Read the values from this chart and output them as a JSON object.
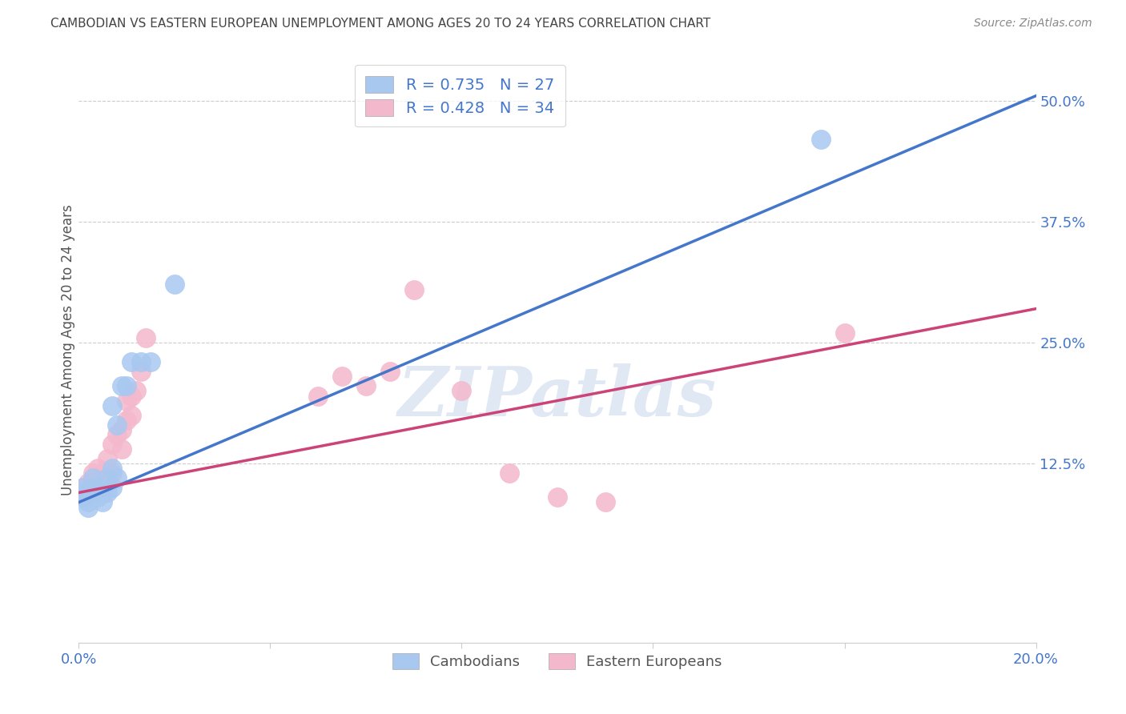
{
  "title": "CAMBODIAN VS EASTERN EUROPEAN UNEMPLOYMENT AMONG AGES 20 TO 24 YEARS CORRELATION CHART",
  "source": "Source: ZipAtlas.com",
  "ylabel": "Unemployment Among Ages 20 to 24 years",
  "xlim": [
    0.0,
    0.2
  ],
  "ylim": [
    -0.06,
    0.545
  ],
  "yticks": [
    0.125,
    0.25,
    0.375,
    0.5
  ],
  "ytick_labels": [
    "12.5%",
    "25.0%",
    "37.5%",
    "50.0%"
  ],
  "xticks": [
    0.0,
    0.04,
    0.08,
    0.12,
    0.16,
    0.2
  ],
  "xtick_show": [
    "0.0%",
    "",
    "",
    "",
    "",
    "20.0%"
  ],
  "cambodian_R": 0.735,
  "cambodian_N": 27,
  "eastern_european_R": 0.428,
  "eastern_european_N": 34,
  "blue_scatter_color": "#A8C8F0",
  "pink_scatter_color": "#F4B8CC",
  "blue_line_color": "#4477CC",
  "pink_line_color": "#CC4477",
  "text_color": "#4477CC",
  "title_color": "#444444",
  "source_color": "#888888",
  "background_color": "#FFFFFF",
  "grid_color": "#CCCCCC",
  "watermark": "ZIPatlas",
  "watermark_color": "#E0E8F4",
  "cambodian_x": [
    0.001,
    0.001,
    0.001,
    0.002,
    0.002,
    0.002,
    0.003,
    0.003,
    0.003,
    0.004,
    0.004,
    0.005,
    0.005,
    0.006,
    0.006,
    0.007,
    0.007,
    0.007,
    0.008,
    0.008,
    0.009,
    0.01,
    0.011,
    0.013,
    0.015,
    0.02,
    0.155
  ],
  "cambodian_y": [
    0.09,
    0.095,
    0.1,
    0.08,
    0.085,
    0.095,
    0.095,
    0.1,
    0.11,
    0.09,
    0.1,
    0.085,
    0.095,
    0.095,
    0.11,
    0.1,
    0.12,
    0.185,
    0.11,
    0.165,
    0.205,
    0.205,
    0.23,
    0.23,
    0.23,
    0.31,
    0.46
  ],
  "eastern_european_x": [
    0.001,
    0.001,
    0.002,
    0.002,
    0.003,
    0.003,
    0.004,
    0.004,
    0.005,
    0.005,
    0.006,
    0.006,
    0.007,
    0.007,
    0.008,
    0.009,
    0.009,
    0.01,
    0.01,
    0.011,
    0.011,
    0.012,
    0.013,
    0.014,
    0.05,
    0.055,
    0.06,
    0.065,
    0.07,
    0.08,
    0.09,
    0.1,
    0.11,
    0.16
  ],
  "eastern_european_y": [
    0.09,
    0.1,
    0.095,
    0.105,
    0.1,
    0.115,
    0.11,
    0.12,
    0.1,
    0.115,
    0.11,
    0.13,
    0.115,
    0.145,
    0.155,
    0.14,
    0.16,
    0.17,
    0.19,
    0.175,
    0.195,
    0.2,
    0.22,
    0.255,
    0.195,
    0.215,
    0.205,
    0.22,
    0.305,
    0.2,
    0.115,
    0.09,
    0.085,
    0.26
  ],
  "blue_line_x0": 0.0,
  "blue_line_y0": 0.085,
  "blue_line_x1": 0.2,
  "blue_line_y1": 0.505,
  "pink_line_x0": 0.0,
  "pink_line_y0": 0.095,
  "pink_line_x1": 0.2,
  "pink_line_y1": 0.285
}
